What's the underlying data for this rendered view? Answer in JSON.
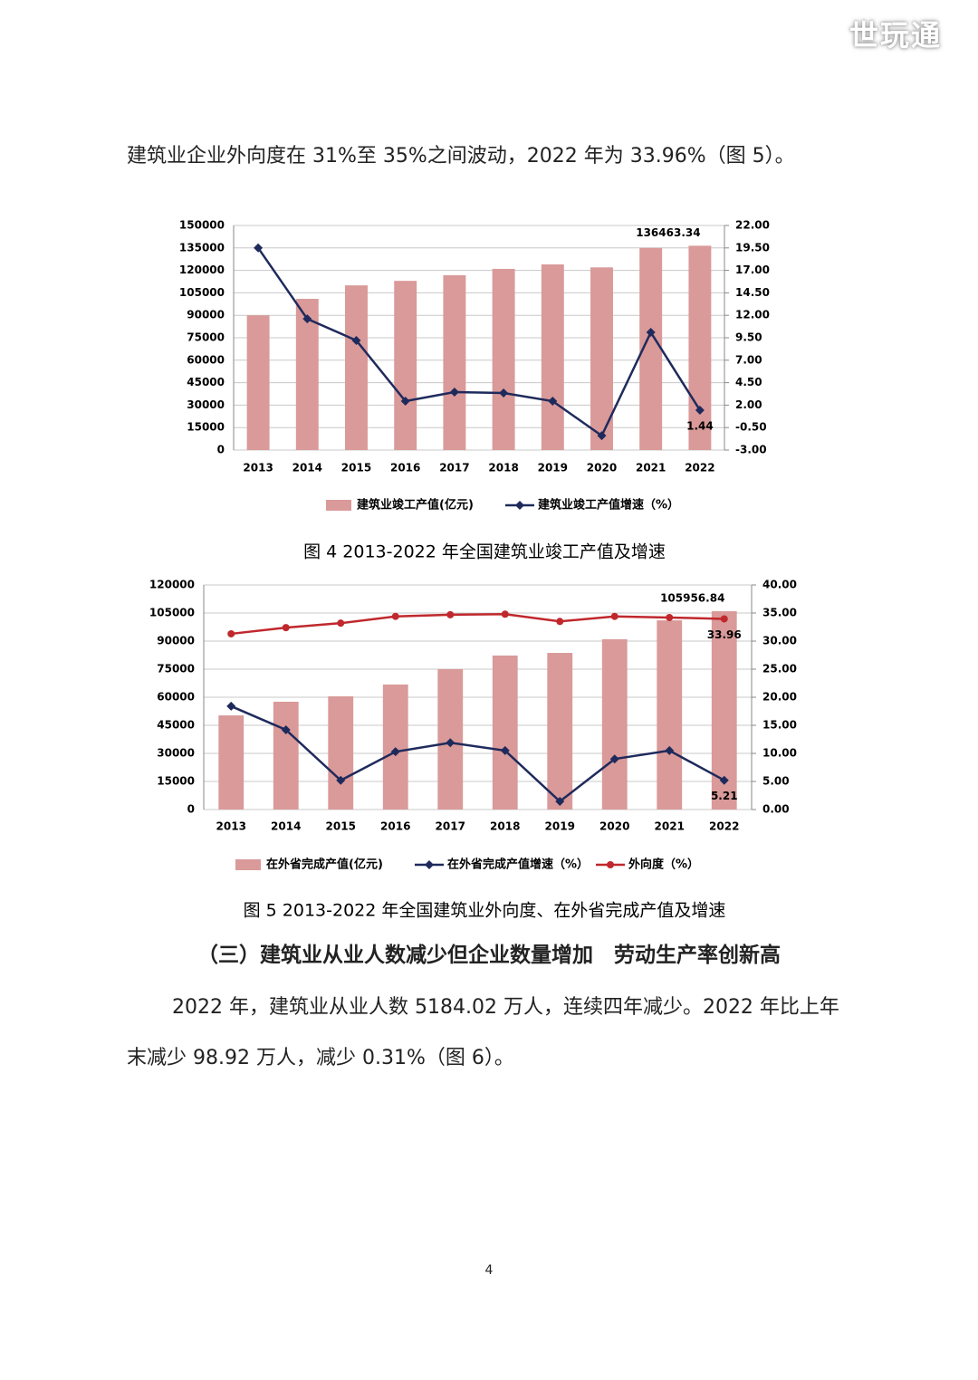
{
  "watermark": "世玩通",
  "paragraph_1": "建筑业企业外向度在 31%至 35%之间波动，2022 年为 33.96%（图 5）。",
  "chart_data": [
    {
      "type": "bar_line",
      "title": "图 4 2013-2022 年全国建筑业竣工产值及增速",
      "categories": [
        "2013",
        "2014",
        "2015",
        "2016",
        "2017",
        "2018",
        "2019",
        "2020",
        "2021",
        "2022"
      ],
      "series": [
        {
          "name": "建筑业竣工产值(亿元)",
          "type": "bar",
          "color": "#d99a99",
          "values": [
            90000,
            101000,
            110000,
            113000,
            116800,
            121000,
            124000,
            122000,
            135000,
            136463.34
          ],
          "value_labels": [
            null,
            null,
            null,
            null,
            null,
            null,
            null,
            null,
            null,
            "136463.34"
          ]
        },
        {
          "name": "建筑业竣工产值增速（%）",
          "type": "line",
          "marker": "diamond",
          "axis": "y2",
          "color": "#1f2a5c",
          "values": [
            19.5,
            11.6,
            9.2,
            2.44,
            3.45,
            3.35,
            2.44,
            -1.4,
            10.1,
            1.44
          ],
          "value_labels": [
            null,
            null,
            null,
            null,
            null,
            null,
            null,
            null,
            null,
            "1.44"
          ]
        }
      ],
      "ylim": [
        0,
        150000
      ],
      "yticks": [
        0,
        15000,
        30000,
        45000,
        60000,
        75000,
        90000,
        105000,
        120000,
        135000,
        150000
      ],
      "y2lim": [
        -3,
        22
      ],
      "y2ticks": [
        {
          "value": -3,
          "label": "-3.00"
        },
        {
          "value": -0.5,
          "label": "-0.50"
        },
        {
          "value": 2,
          "label": "2.00"
        },
        {
          "value": 4.5,
          "label": "4.50"
        },
        {
          "value": 7,
          "label": "7.00"
        },
        {
          "value": 9.5,
          "label": "9.50"
        },
        {
          "value": 12,
          "label": "12.00"
        },
        {
          "value": 14.5,
          "label": "14.50"
        },
        {
          "value": 17,
          "label": "17.00"
        },
        {
          "value": 19.5,
          "label": "19.50"
        },
        {
          "value": 22,
          "label": "22.00"
        }
      ],
      "grid": true
    },
    {
      "type": "bar_line",
      "title": "图 5 2013-2022 年全国建筑业外向度、在外省完成产值及增速",
      "categories": [
        "2013",
        "2014",
        "2015",
        "2016",
        "2017",
        "2018",
        "2019",
        "2020",
        "2021",
        "2022"
      ],
      "series": [
        {
          "name": "在外省完成产值(亿元)",
          "type": "bar",
          "color": "#d99a99",
          "values": [
            50300,
            57600,
            60500,
            66800,
            75000,
            82300,
            83700,
            91000,
            101100,
            105956.84
          ],
          "value_labels": [
            null,
            null,
            null,
            null,
            null,
            null,
            null,
            null,
            null,
            "105956.84"
          ]
        },
        {
          "name": "在外省完成产值增速（%）",
          "type": "line",
          "marker": "diamond",
          "axis": "y2",
          "color": "#1f2a5c",
          "values": [
            18.4,
            14.2,
            5.2,
            10.3,
            11.9,
            10.5,
            1.45,
            9.0,
            10.5,
            5.21
          ],
          "value_labels": [
            null,
            null,
            null,
            null,
            null,
            null,
            null,
            null,
            null,
            "5.21"
          ]
        },
        {
          "name": "外向度（%）",
          "type": "line",
          "marker": "circle",
          "axis": "y2",
          "color": "#c0282d",
          "values": [
            31.3,
            32.4,
            33.2,
            34.4,
            34.7,
            34.8,
            33.5,
            34.4,
            34.2,
            33.96
          ],
          "value_labels": [
            null,
            null,
            null,
            null,
            null,
            null,
            null,
            null,
            null,
            "33.96"
          ]
        }
      ],
      "ylim": [
        0,
        120000
      ],
      "yticks": [
        0,
        15000,
        30000,
        45000,
        60000,
        75000,
        90000,
        105000,
        120000
      ],
      "y2lim": [
        0,
        40
      ],
      "y2ticks": [
        {
          "value": 0,
          "label": "0.00"
        },
        {
          "value": 5,
          "label": "5.00"
        },
        {
          "value": 10,
          "label": "10.00"
        },
        {
          "value": 15,
          "label": "15.00"
        },
        {
          "value": 20,
          "label": "20.00"
        },
        {
          "value": 25,
          "label": "25.00"
        },
        {
          "value": 30,
          "label": "30.00"
        },
        {
          "value": 35,
          "label": "35.00"
        },
        {
          "value": 40,
          "label": "40.00"
        }
      ],
      "grid": true
    }
  ],
  "heading": "（三）建筑业从业人数减少但企业数量增加　劳动生产率创新高",
  "paragraph_2": "2022 年，建筑业从业人数 5184.02 万人，连续四年减少。2022 年比上年末减少 98.92 万人，减少 0.31%（图 6）。",
  "page_number": "4"
}
